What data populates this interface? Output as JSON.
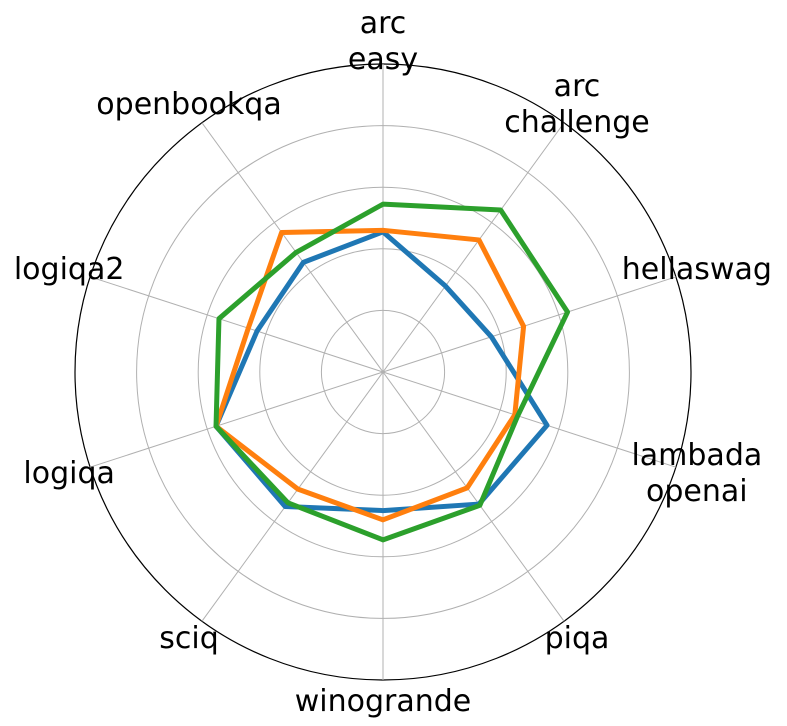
{
  "chart_data": {
    "type": "radar",
    "categories": [
      "arc\neasy",
      "arc\nchallenge",
      "hellaswag",
      "lambada\nopenai",
      "piqa",
      "winogrande",
      "sciq",
      "logiqa",
      "logiqa2",
      "openbookqa"
    ],
    "series": [
      {
        "color": "#1f77b4",
        "values": [
          0.455,
          0.345,
          0.37,
          0.56,
          0.53,
          0.45,
          0.54,
          0.57,
          0.43,
          0.44
        ]
      },
      {
        "color": "#ff7f0e",
        "values": [
          0.46,
          0.53,
          0.48,
          0.45,
          0.465,
          0.48,
          0.47,
          0.57,
          0.46,
          0.56
        ]
      },
      {
        "color": "#2ca02c",
        "values": [
          0.545,
          0.65,
          0.63,
          0.46,
          0.535,
          0.545,
          0.525,
          0.57,
          0.56,
          0.48
        ]
      }
    ],
    "ylim": [
      0,
      1
    ],
    "yticks": [
      0.2,
      0.4,
      0.6,
      0.8,
      1.0
    ],
    "grid": true
  }
}
